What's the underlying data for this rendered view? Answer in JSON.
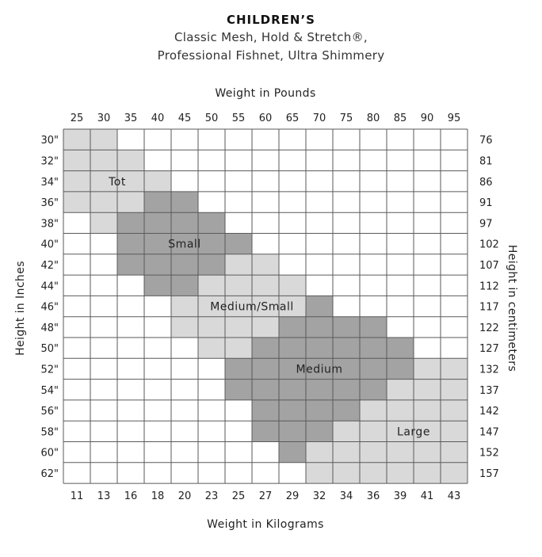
{
  "header": {
    "title": "CHILDREN’S",
    "subtitle_1": "Classic Mesh, Hold & Stretch®,",
    "subtitle_2": "Professional Fishnet, Ultra Shimmery"
  },
  "colors": {
    "Tot": "#d9d9d9",
    "Small": "#a3a3a3",
    "Medium/Small": "#d9d9d9",
    "Medium": "#a3a3a3",
    "Large": "#d9d9d9",
    "empty": "#ffffff",
    "grid": "#5a5a5a"
  },
  "chart_data": {
    "type": "heatmap",
    "xlabel_top": "Weight in Pounds",
    "xlabel_bottom": "Weight in Kilograms",
    "ylabel_left": "Height in Inches",
    "ylabel_right": "Height in centimeters",
    "x_pounds": [
      "25",
      "30",
      "35",
      "40",
      "45",
      "50",
      "55",
      "60",
      "65",
      "70",
      "75",
      "80",
      "85",
      "90",
      "95"
    ],
    "x_kilograms": [
      "11",
      "13",
      "16",
      "18",
      "20",
      "23",
      "25",
      "27",
      "29",
      "32",
      "34",
      "36",
      "39",
      "41",
      "43"
    ],
    "y_inches": [
      "30\"",
      "32\"",
      "34\"",
      "36\"",
      "38\"",
      "40\"",
      "42\"",
      "44\"",
      "46\"",
      "48\"",
      "50\"",
      "52\"",
      "54\"",
      "56\"",
      "58\"",
      "60\"",
      "62\""
    ],
    "y_centimeters": [
      "76",
      "81",
      "86",
      "91",
      "97",
      "102",
      "107",
      "112",
      "117",
      "122",
      "127",
      "132",
      "137",
      "142",
      "147",
      "152",
      "157"
    ],
    "sizes": [
      "Tot",
      "Small",
      "Medium/Small",
      "Medium",
      "Large"
    ],
    "grid": [
      [
        0,
        0,
        -1,
        -1,
        -1,
        -1,
        -1,
        -1,
        -1,
        -1,
        -1,
        -1,
        -1,
        -1,
        -1
      ],
      [
        0,
        0,
        0,
        -1,
        -1,
        -1,
        -1,
        -1,
        -1,
        -1,
        -1,
        -1,
        -1,
        -1,
        -1
      ],
      [
        0,
        0,
        0,
        0,
        -1,
        -1,
        -1,
        -1,
        -1,
        -1,
        -1,
        -1,
        -1,
        -1,
        -1
      ],
      [
        0,
        0,
        0,
        1,
        1,
        -1,
        -1,
        -1,
        -1,
        -1,
        -1,
        -1,
        -1,
        -1,
        -1
      ],
      [
        -1,
        0,
        1,
        1,
        1,
        1,
        -1,
        -1,
        -1,
        -1,
        -1,
        -1,
        -1,
        -1,
        -1
      ],
      [
        -1,
        -1,
        1,
        1,
        1,
        1,
        1,
        -1,
        -1,
        -1,
        -1,
        -1,
        -1,
        -1,
        -1
      ],
      [
        -1,
        -1,
        1,
        1,
        1,
        1,
        2,
        2,
        -1,
        -1,
        -1,
        -1,
        -1,
        -1,
        -1
      ],
      [
        -1,
        -1,
        -1,
        1,
        1,
        2,
        2,
        2,
        2,
        -1,
        -1,
        -1,
        -1,
        -1,
        -1
      ],
      [
        -1,
        -1,
        -1,
        -1,
        2,
        2,
        2,
        2,
        2,
        3,
        -1,
        -1,
        -1,
        -1,
        -1
      ],
      [
        -1,
        -1,
        -1,
        -1,
        2,
        2,
        2,
        2,
        3,
        3,
        3,
        3,
        -1,
        -1,
        -1
      ],
      [
        -1,
        -1,
        -1,
        -1,
        -1,
        2,
        2,
        3,
        3,
        3,
        3,
        3,
        3,
        -1,
        -1
      ],
      [
        -1,
        -1,
        -1,
        -1,
        -1,
        -1,
        3,
        3,
        3,
        3,
        3,
        3,
        3,
        4,
        4
      ],
      [
        -1,
        -1,
        -1,
        -1,
        -1,
        -1,
        3,
        3,
        3,
        3,
        3,
        3,
        4,
        4,
        4
      ],
      [
        -1,
        -1,
        -1,
        -1,
        -1,
        -1,
        -1,
        3,
        3,
        3,
        3,
        4,
        4,
        4,
        4
      ],
      [
        -1,
        -1,
        -1,
        -1,
        -1,
        -1,
        -1,
        3,
        3,
        3,
        4,
        4,
        4,
        4,
        4
      ],
      [
        -1,
        -1,
        -1,
        -1,
        -1,
        -1,
        -1,
        -1,
        3,
        4,
        4,
        4,
        4,
        4,
        4
      ],
      [
        -1,
        -1,
        -1,
        -1,
        -1,
        -1,
        -1,
        -1,
        -1,
        4,
        4,
        4,
        4,
        4,
        4
      ]
    ],
    "size_labels": [
      {
        "text": "Tot",
        "col": 1.5,
        "row": 2
      },
      {
        "text": "Small",
        "col": 4,
        "row": 5
      },
      {
        "text": "Medium/Small",
        "col": 6.5,
        "row": 8
      },
      {
        "text": "Medium",
        "col": 9,
        "row": 11
      },
      {
        "text": "Large",
        "col": 12.5,
        "row": 14
      }
    ]
  }
}
